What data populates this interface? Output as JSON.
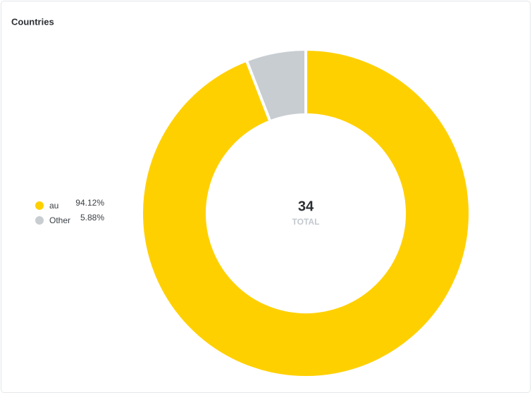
{
  "chart_data": {
    "type": "pie",
    "donut": true,
    "title": "Countries",
    "categories": [
      "au",
      "Other"
    ],
    "values": [
      94.12,
      5.88
    ],
    "value_labels": [
      "94.12%",
      "5.88%"
    ],
    "colors": [
      "#ffd000",
      "#c8cdd2"
    ],
    "total": 34,
    "total_label": "TOTAL"
  }
}
